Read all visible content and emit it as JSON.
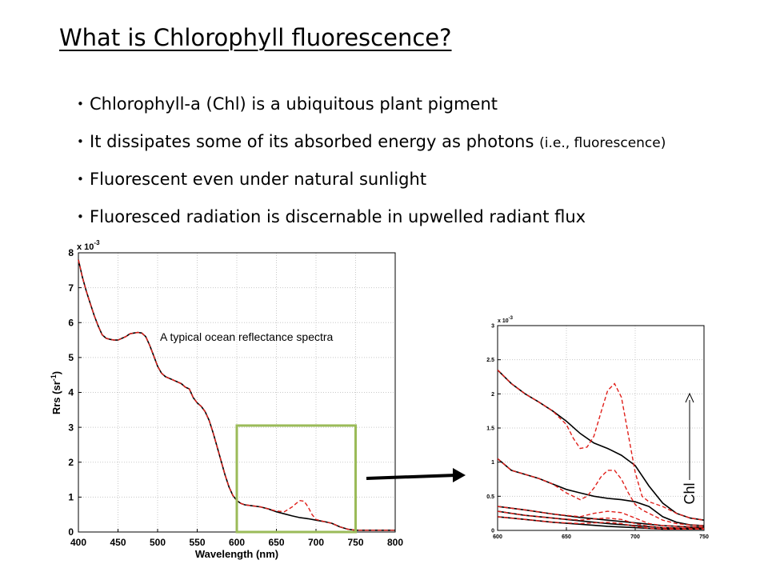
{
  "title": "What is Chlorophyll fluorescence?",
  "bullets": [
    {
      "text": "Chlorophyll-a (Chl) is a ubiquitous plant pigment",
      "note": ""
    },
    {
      "text": "It dissipates some of its absorbed energy as photons ",
      "note": "(i.e., fluorescence)"
    },
    {
      "text": "Fluorescent even under natural sunlight",
      "note": ""
    },
    {
      "text": "Fluoresced radiation is discernable in upwelled radiant flux",
      "note": ""
    }
  ],
  "colors": {
    "highlight_box": "#9bbb59",
    "fluorescence_curve": "#e0201b",
    "base_curve": "#000000"
  },
  "chart_data": [
    {
      "type": "line",
      "xlabel": "Wavelength (nm)",
      "ylabel": "Rrs (sr-1)",
      "y_multiplier": "x 10-3",
      "annotation": "A typical ocean reflectance spectra",
      "xlim": [
        400,
        800
      ],
      "ylim": [
        0,
        8
      ],
      "xticks": [
        400,
        450,
        500,
        550,
        600,
        650,
        700,
        750,
        800
      ],
      "yticks": [
        0,
        1,
        2,
        3,
        4,
        5,
        6,
        7,
        8
      ],
      "grid": true,
      "highlight_x_range": [
        600,
        750
      ],
      "highlight_y_range": [
        0,
        3.05
      ],
      "series": [
        {
          "style": "solid-black",
          "x": [
            400,
            405,
            410,
            415,
            420,
            425,
            430,
            435,
            440,
            445,
            450,
            455,
            460,
            465,
            470,
            475,
            480,
            485,
            490,
            495,
            500,
            505,
            510,
            515,
            520,
            525,
            530,
            535,
            540,
            545,
            550,
            555,
            560,
            565,
            570,
            575,
            580,
            585,
            590,
            595,
            600,
            605,
            610,
            620,
            630,
            640,
            650,
            660,
            670,
            680,
            690,
            700,
            710,
            720,
            730,
            740,
            750,
            760,
            780,
            800
          ],
          "y": [
            7.8,
            7.3,
            6.9,
            6.55,
            6.2,
            5.9,
            5.65,
            5.55,
            5.52,
            5.5,
            5.5,
            5.55,
            5.6,
            5.68,
            5.7,
            5.72,
            5.7,
            5.6,
            5.35,
            5.05,
            4.75,
            4.55,
            4.45,
            4.4,
            4.35,
            4.3,
            4.25,
            4.15,
            4.1,
            3.85,
            3.7,
            3.6,
            3.45,
            3.2,
            2.85,
            2.45,
            2.05,
            1.65,
            1.3,
            1.05,
            0.9,
            0.82,
            0.78,
            0.75,
            0.72,
            0.66,
            0.58,
            0.52,
            0.46,
            0.41,
            0.38,
            0.34,
            0.3,
            0.25,
            0.15,
            0.08,
            0.05,
            0.05,
            0.05,
            0.05
          ]
        },
        {
          "style": "dashed-red",
          "x": [
            400,
            405,
            410,
            415,
            420,
            425,
            430,
            435,
            440,
            445,
            450,
            455,
            460,
            465,
            470,
            475,
            480,
            485,
            490,
            495,
            500,
            505,
            510,
            515,
            520,
            525,
            530,
            535,
            540,
            545,
            550,
            555,
            560,
            565,
            570,
            575,
            580,
            585,
            590,
            595,
            600,
            605,
            610,
            620,
            630,
            640,
            650,
            660,
            670,
            675,
            680,
            685,
            690,
            695,
            700,
            710,
            720,
            730,
            740,
            750,
            760,
            780,
            800
          ],
          "y": [
            7.8,
            7.3,
            6.9,
            6.55,
            6.2,
            5.9,
            5.65,
            5.55,
            5.52,
            5.5,
            5.5,
            5.55,
            5.6,
            5.68,
            5.7,
            5.72,
            5.7,
            5.6,
            5.35,
            5.05,
            4.75,
            4.55,
            4.45,
            4.4,
            4.35,
            4.3,
            4.25,
            4.15,
            4.1,
            3.85,
            3.7,
            3.6,
            3.45,
            3.2,
            2.85,
            2.45,
            2.05,
            1.65,
            1.3,
            1.05,
            0.9,
            0.82,
            0.78,
            0.75,
            0.72,
            0.66,
            0.6,
            0.58,
            0.72,
            0.82,
            0.9,
            0.88,
            0.72,
            0.5,
            0.36,
            0.3,
            0.25,
            0.15,
            0.08,
            0.05,
            0.05,
            0.05,
            0.05
          ]
        }
      ]
    },
    {
      "type": "line",
      "y_multiplier": "x 10-3",
      "xlim": [
        600,
        750
      ],
      "ylim": [
        0,
        3
      ],
      "xticks": [
        600,
        650,
        700,
        750
      ],
      "yticks": [
        0,
        0.5,
        1,
        1.5,
        2,
        2.5,
        3
      ],
      "grid": true,
      "arrow_label": "Chl",
      "series": [
        {
          "style": "solid-black",
          "x": [
            600,
            610,
            620,
            630,
            640,
            650,
            660,
            670,
            680,
            690,
            700,
            710,
            720,
            730,
            740,
            750
          ],
          "y": [
            2.35,
            2.15,
            2.0,
            1.88,
            1.75,
            1.6,
            1.42,
            1.28,
            1.2,
            1.1,
            0.95,
            0.65,
            0.4,
            0.25,
            0.18,
            0.15
          ]
        },
        {
          "style": "dashed-red",
          "x": [
            600,
            610,
            620,
            630,
            640,
            650,
            655,
            660,
            665,
            670,
            675,
            680,
            685,
            690,
            695,
            700,
            705,
            710,
            720,
            730,
            740,
            750
          ],
          "y": [
            2.35,
            2.15,
            2.0,
            1.88,
            1.75,
            1.55,
            1.35,
            1.2,
            1.22,
            1.38,
            1.72,
            2.05,
            2.15,
            1.95,
            1.4,
            0.85,
            0.5,
            0.42,
            0.35,
            0.25,
            0.18,
            0.15
          ]
        },
        {
          "style": "solid-black",
          "x": [
            600,
            610,
            620,
            630,
            640,
            650,
            660,
            670,
            680,
            690,
            700,
            710,
            720,
            730,
            740,
            750
          ],
          "y": [
            1.05,
            0.88,
            0.82,
            0.76,
            0.68,
            0.6,
            0.55,
            0.5,
            0.47,
            0.45,
            0.42,
            0.35,
            0.2,
            0.12,
            0.08,
            0.07
          ]
        },
        {
          "style": "dashed-red",
          "x": [
            600,
            610,
            620,
            630,
            640,
            650,
            660,
            665,
            670,
            675,
            680,
            685,
            690,
            695,
            700,
            705,
            710,
            720,
            730,
            740,
            750
          ],
          "y": [
            1.05,
            0.88,
            0.82,
            0.76,
            0.68,
            0.55,
            0.45,
            0.5,
            0.62,
            0.78,
            0.88,
            0.88,
            0.75,
            0.55,
            0.38,
            0.3,
            0.25,
            0.15,
            0.1,
            0.08,
            0.07
          ]
        },
        {
          "style": "solid-black",
          "x": [
            600,
            620,
            640,
            660,
            680,
            700,
            720,
            740,
            750
          ],
          "y": [
            0.35,
            0.3,
            0.24,
            0.19,
            0.15,
            0.11,
            0.07,
            0.05,
            0.05
          ]
        },
        {
          "style": "dashed-red",
          "x": [
            600,
            620,
            640,
            660,
            670,
            680,
            690,
            700,
            710,
            720,
            740,
            750
          ],
          "y": [
            0.35,
            0.3,
            0.24,
            0.2,
            0.25,
            0.28,
            0.26,
            0.18,
            0.1,
            0.07,
            0.05,
            0.05
          ]
        },
        {
          "style": "solid-black",
          "x": [
            600,
            620,
            640,
            660,
            680,
            700,
            720,
            740,
            750
          ],
          "y": [
            0.28,
            0.22,
            0.18,
            0.14,
            0.1,
            0.07,
            0.04,
            0.03,
            0.03
          ]
        },
        {
          "style": "dashed-red",
          "x": [
            600,
            620,
            640,
            660,
            670,
            680,
            690,
            700,
            710,
            720,
            740,
            750
          ],
          "y": [
            0.28,
            0.22,
            0.18,
            0.15,
            0.17,
            0.18,
            0.16,
            0.1,
            0.06,
            0.04,
            0.03,
            0.03
          ]
        },
        {
          "style": "solid-black",
          "x": [
            600,
            620,
            640,
            660,
            680,
            700,
            720,
            740,
            750
          ],
          "y": [
            0.2,
            0.16,
            0.12,
            0.09,
            0.06,
            0.04,
            0.02,
            0.02,
            0.02
          ]
        },
        {
          "style": "dashed-red",
          "x": [
            600,
            620,
            640,
            660,
            670,
            680,
            690,
            700,
            710,
            720,
            740,
            750
          ],
          "y": [
            0.2,
            0.16,
            0.12,
            0.1,
            0.11,
            0.12,
            0.1,
            0.06,
            0.03,
            0.02,
            0.02,
            0.02
          ]
        }
      ]
    }
  ]
}
